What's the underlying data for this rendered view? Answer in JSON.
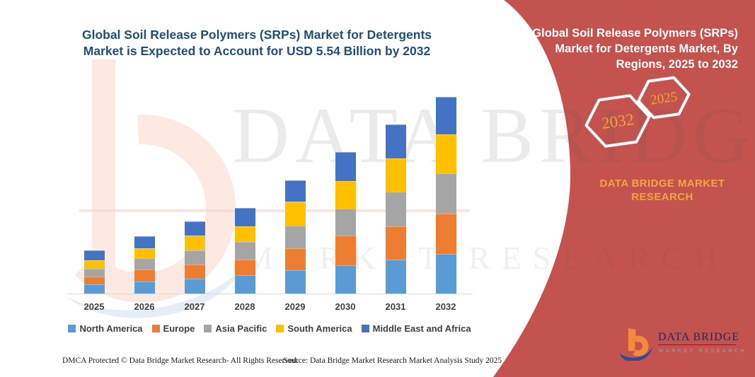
{
  "left_title": "Global Soil Release Polymers (SRPs) Market for Detergents Market is Expected to Account for USD 5.54 Billion by 2032",
  "right_panel": {
    "title": "Global Soil Release Polymers (SRPs) Market for Detergents Market, By Regions, 2025 to 2032",
    "hexagons": [
      {
        "label": "2032"
      },
      {
        "label": "2025"
      }
    ],
    "brand_line1": "DATA BRIDGE MARKET",
    "brand_line2": "RESEARCH",
    "panel_color": "#C4524E",
    "accent_text_color": "#F2A63C"
  },
  "logo": {
    "name": "DATA BRIDGE",
    "subtitle": "MARKET RESEARCH"
  },
  "watermark": {
    "line1": "DATA BRIDGE",
    "line2": "MARKET RESEARCH"
  },
  "footer": {
    "left": "DMCA Protected © Data Bridge Market Research-  All Rights Reserved.",
    "right": "Source: Data Bridge Market Research  Market Analysis Study 2025"
  },
  "chart_data": {
    "type": "bar",
    "stacked": true,
    "title": "Global Soil Release Polymers (SRPs) Market for Detergents Market, By Regions, 2025 to 2032",
    "unit": "USD Billion",
    "categories": [
      "2025",
      "2026",
      "2027",
      "2028",
      "2029",
      "2030",
      "2031",
      "2032"
    ],
    "series": [
      {
        "name": "North America",
        "color": "#5B9BD5",
        "values": [
          0.26,
          0.34,
          0.42,
          0.52,
          0.66,
          0.8,
          0.96,
          1.12
        ]
      },
      {
        "name": "Europe",
        "color": "#ED7D31",
        "values": [
          0.22,
          0.34,
          0.4,
          0.44,
          0.62,
          0.84,
          0.94,
          1.14
        ]
      },
      {
        "name": "Asia Pacific",
        "color": "#A5A5A5",
        "values": [
          0.22,
          0.32,
          0.4,
          0.5,
          0.64,
          0.76,
          0.96,
          1.12
        ]
      },
      {
        "name": "South America",
        "color": "#FFC000",
        "values": [
          0.24,
          0.28,
          0.42,
          0.44,
          0.68,
          0.76,
          0.94,
          1.1
        ]
      },
      {
        "name": "Middle East and Africa",
        "color": "#4472C4",
        "values": [
          0.28,
          0.34,
          0.4,
          0.52,
          0.58,
          0.82,
          0.96,
          1.06
        ]
      }
    ],
    "totals": [
      1.22,
      1.62,
      2.04,
      2.42,
      3.18,
      3.98,
      4.76,
      5.54
    ],
    "highlight_total_2032": "USD 5.54 Billion",
    "ylim": [
      0,
      5.7
    ],
    "grid": false,
    "legend_position": "bottom"
  }
}
